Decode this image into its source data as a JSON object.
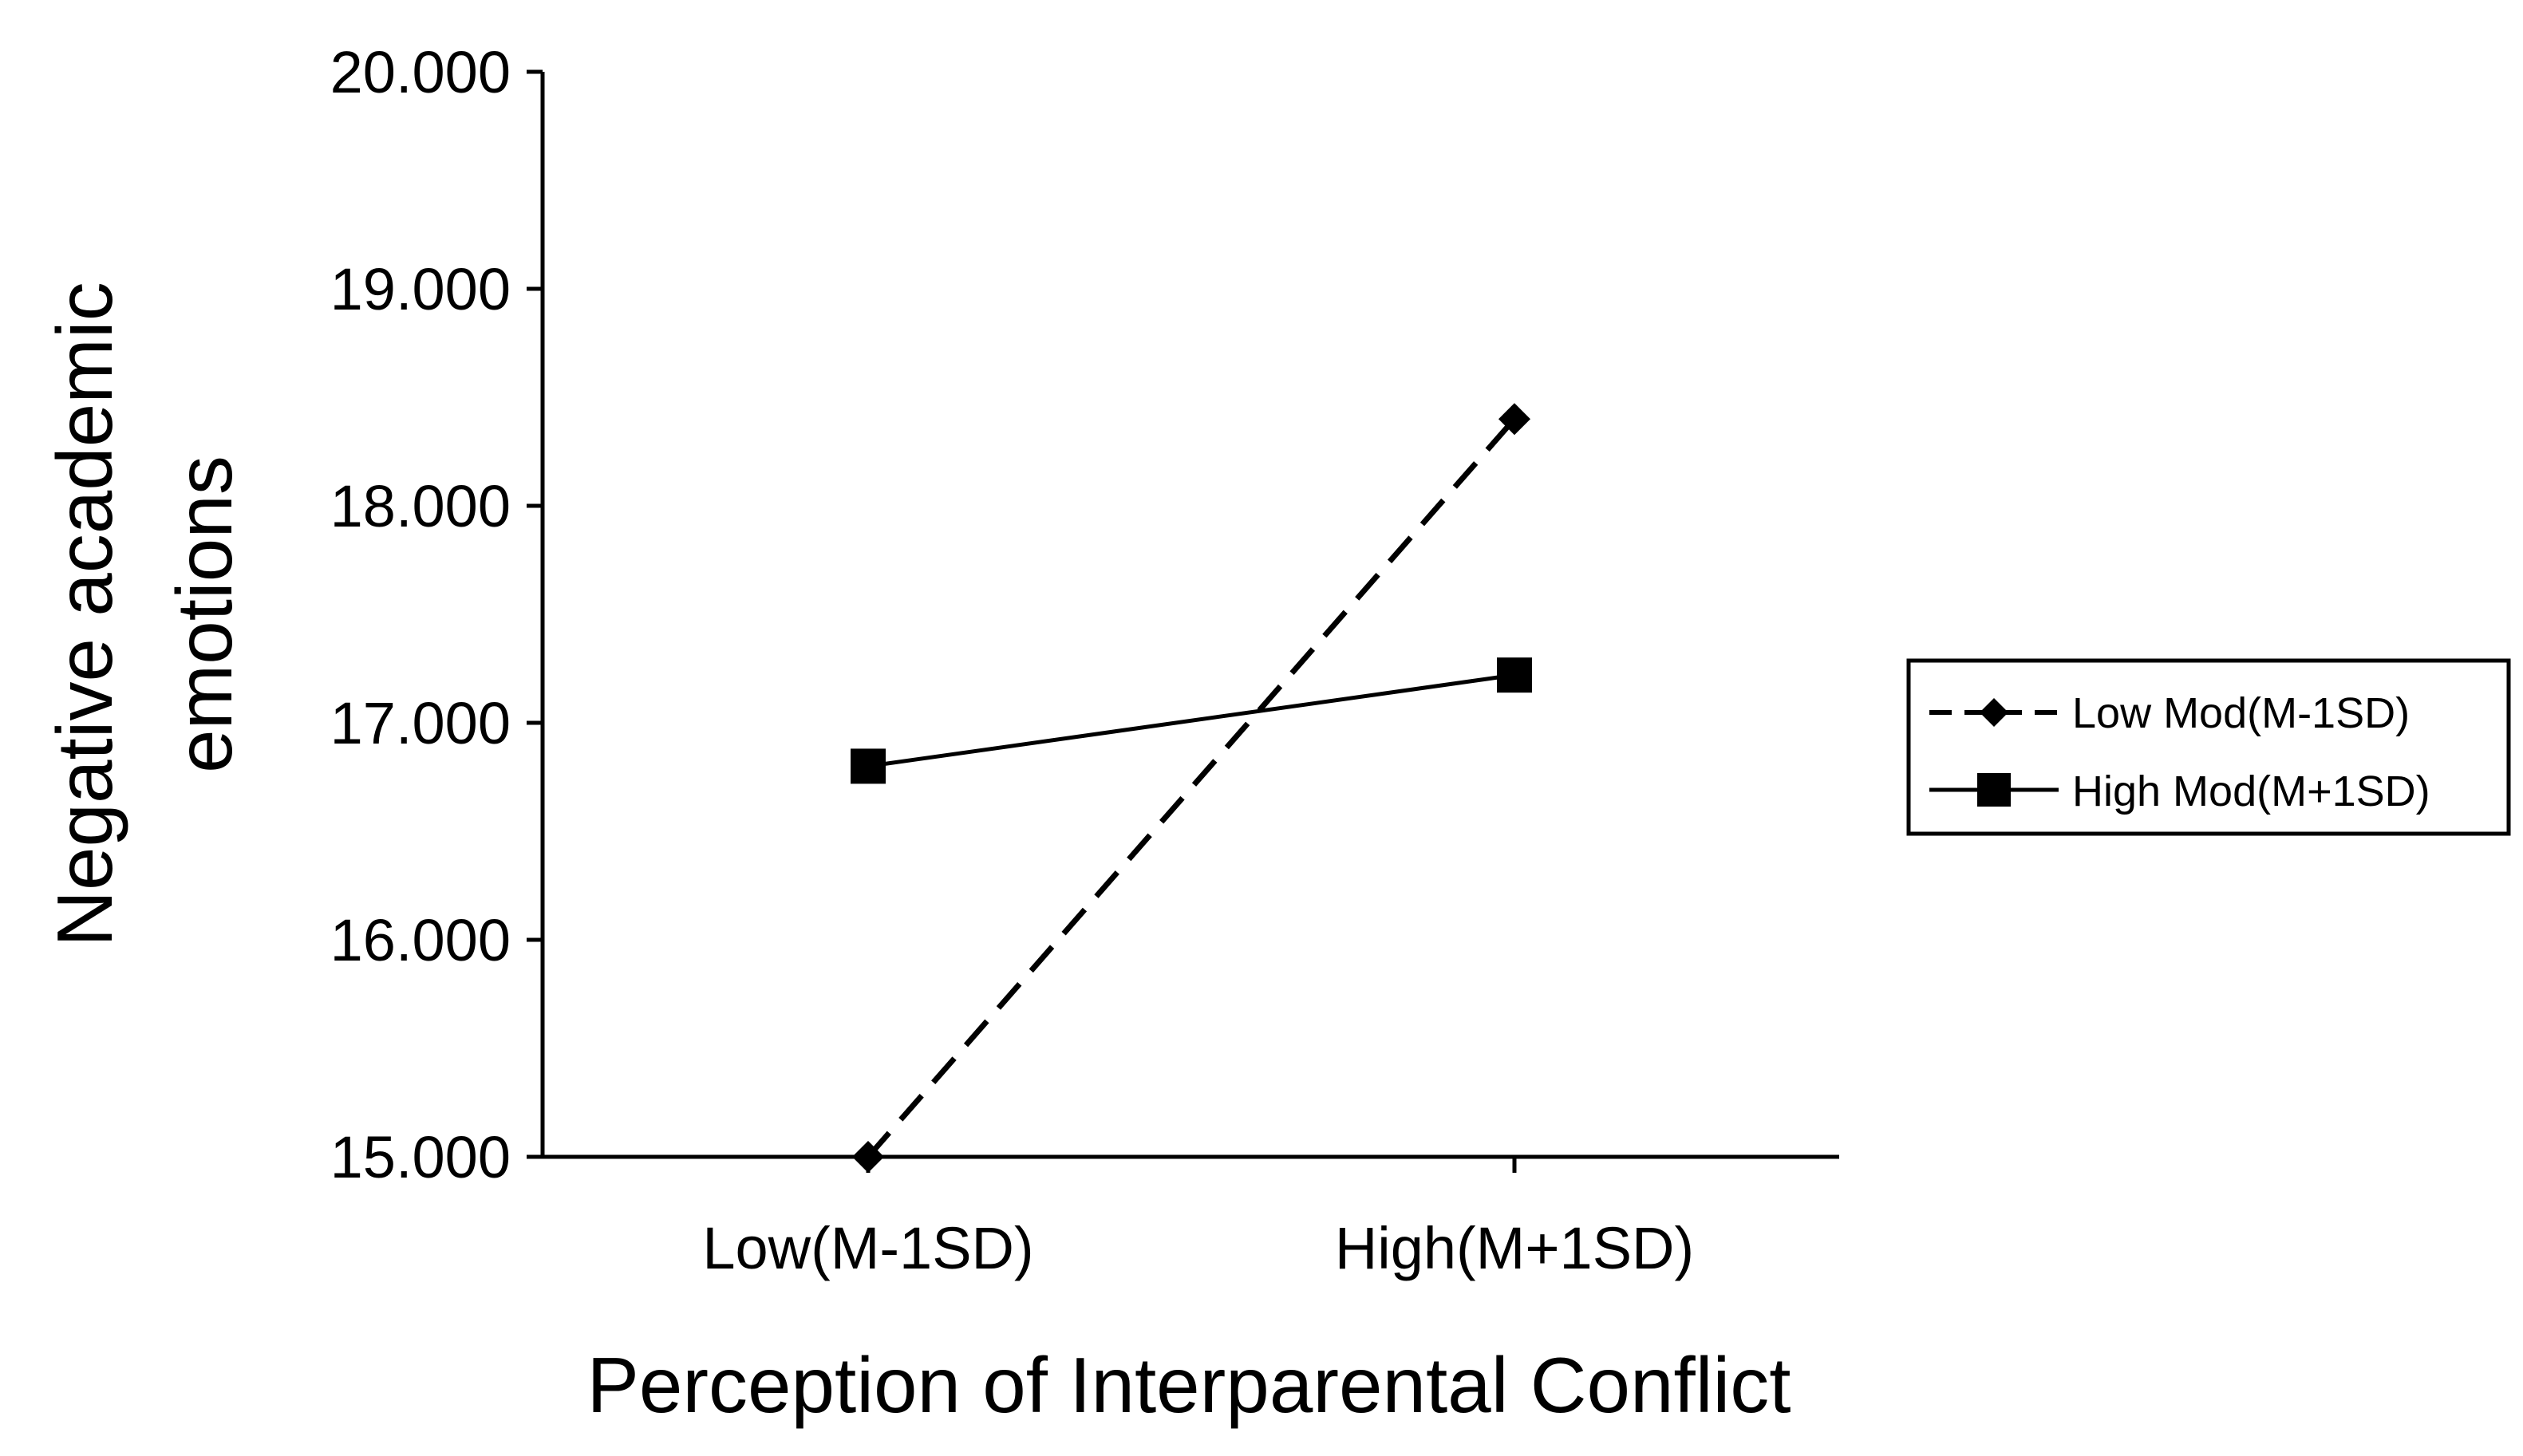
{
  "chart_data": {
    "type": "line",
    "title": "",
    "xlabel": "Perception of Interparental Conflict",
    "ylabel_lines": [
      "Negative academic",
      "emotions"
    ],
    "categories": [
      "Low(M-1SD)",
      "High(M+1SD)"
    ],
    "y_ticks": [
      "15.000",
      "16.000",
      "17.000",
      "18.000",
      "19.000",
      "20.000"
    ],
    "ylim": [
      15,
      20
    ],
    "grid": false,
    "legend_position": "right",
    "series": [
      {
        "name": "Low Mod(M-1SD)",
        "values": [
          15.0,
          18.4
        ],
        "line_style": "dashed",
        "marker": "diamond",
        "color": "#000000"
      },
      {
        "name": "High Mod(M+1SD)",
        "values": [
          16.8,
          17.22
        ],
        "line_style": "solid",
        "marker": "square",
        "color": "#000000"
      }
    ]
  }
}
